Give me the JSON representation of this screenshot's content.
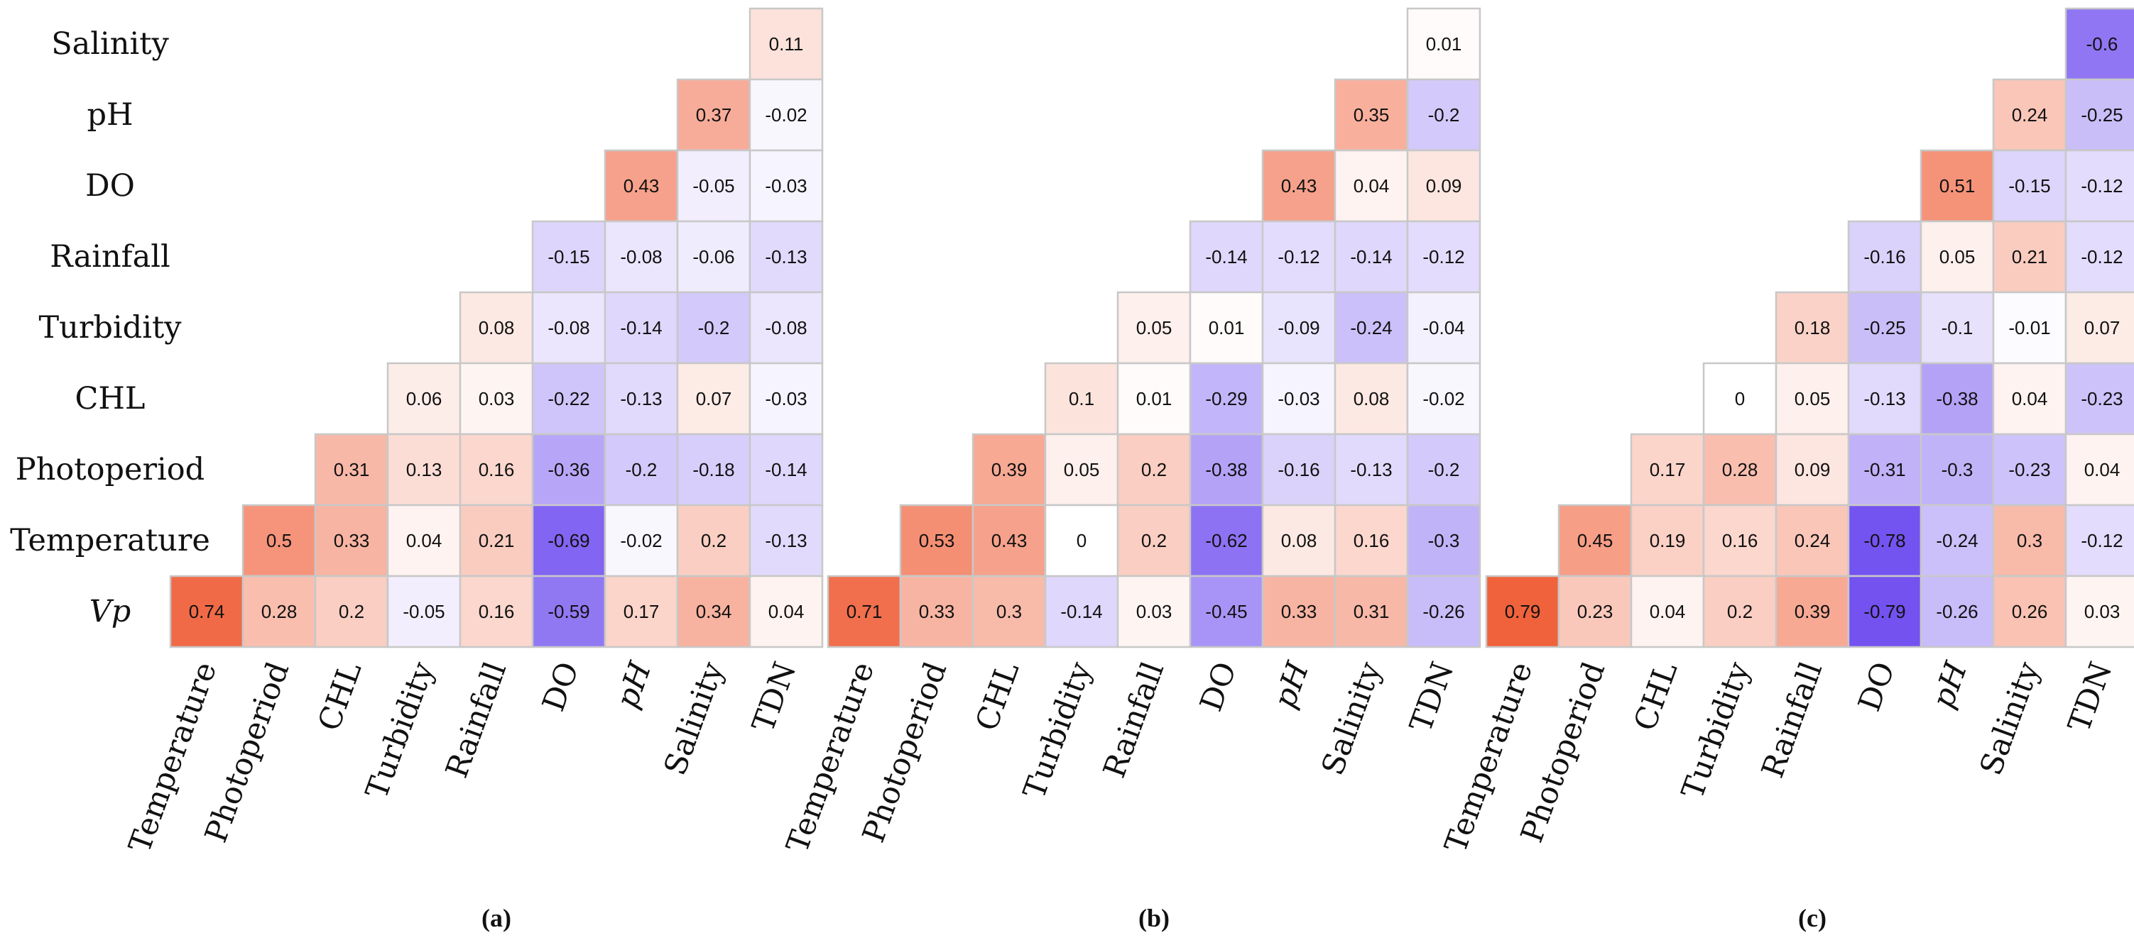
{
  "chart_data": [
    {
      "type": "heatmap",
      "caption": "(a)",
      "row_labels": [
        "Salinity",
        "pH",
        "DO",
        "Rainfall",
        "Turbidity",
        "CHL",
        "Photoperiod",
        "Temperature",
        "Vp"
      ],
      "col_labels": [
        "Temperature",
        "Photoperiod",
        "CHL",
        "Turbidity",
        "Rainfall",
        "DO",
        "pH",
        "Salinity",
        "TDN"
      ],
      "values": [
        [
          null,
          null,
          null,
          null,
          null,
          null,
          null,
          null,
          0.11
        ],
        [
          null,
          null,
          null,
          null,
          null,
          null,
          null,
          0.37,
          -0.02
        ],
        [
          null,
          null,
          null,
          null,
          null,
          null,
          0.43,
          -0.05,
          -0.03
        ],
        [
          null,
          null,
          null,
          null,
          null,
          -0.15,
          -0.08,
          -0.06,
          -0.13
        ],
        [
          null,
          null,
          null,
          null,
          0.08,
          -0.08,
          -0.14,
          -0.2,
          -0.08
        ],
        [
          null,
          null,
          null,
          0.06,
          0.03,
          -0.22,
          -0.13,
          0.07,
          -0.03
        ],
        [
          null,
          null,
          0.31,
          0.13,
          0.16,
          -0.36,
          -0.2,
          -0.18,
          -0.14
        ],
        [
          null,
          0.5,
          0.33,
          0.04,
          0.21,
          -0.69,
          -0.02,
          0.2,
          -0.13
        ],
        [
          0.74,
          0.28,
          0.2,
          -0.05,
          0.16,
          -0.59,
          0.17,
          0.34,
          0.04
        ]
      ],
      "color_scale": {
        "negative": "#7150f0",
        "neutral": "#ffffff",
        "positive": "#f0603a",
        "range": [
          -0.8,
          0.8
        ]
      }
    },
    {
      "type": "heatmap",
      "caption": "(b)",
      "col_labels": [
        "Temperature",
        "Photoperiod",
        "CHL",
        "Turbidity",
        "Rainfall",
        "DO",
        "pH",
        "Salinity",
        "TDN"
      ],
      "values": [
        [
          null,
          null,
          null,
          null,
          null,
          null,
          null,
          null,
          0.01
        ],
        [
          null,
          null,
          null,
          null,
          null,
          null,
          null,
          0.35,
          -0.2
        ],
        [
          null,
          null,
          null,
          null,
          null,
          null,
          0.43,
          0.04,
          0.09
        ],
        [
          null,
          null,
          null,
          null,
          null,
          -0.14,
          -0.12,
          -0.14,
          -0.12
        ],
        [
          null,
          null,
          null,
          null,
          0.05,
          0.01,
          -0.09,
          -0.24,
          -0.04
        ],
        [
          null,
          null,
          null,
          0.1,
          0.01,
          -0.29,
          -0.03,
          0.08,
          -0.02
        ],
        [
          null,
          null,
          0.39,
          0.05,
          0.2,
          -0.38,
          -0.16,
          -0.13,
          -0.2
        ],
        [
          null,
          0.53,
          0.43,
          0,
          0.2,
          -0.62,
          0.08,
          0.16,
          -0.3
        ],
        [
          0.71,
          0.33,
          0.3,
          -0.14,
          0.03,
          -0.45,
          0.33,
          0.31,
          -0.26
        ]
      ],
      "color_scale": {
        "negative": "#7150f0",
        "neutral": "#ffffff",
        "positive": "#f0603a",
        "range": [
          -0.8,
          0.8
        ]
      }
    },
    {
      "type": "heatmap",
      "caption": "(c)",
      "col_labels": [
        "Temperature",
        "Photoperiod",
        "CHL",
        "Turbidity",
        "Rainfall",
        "DO",
        "pH",
        "Salinity",
        "TDN"
      ],
      "values": [
        [
          null,
          null,
          null,
          null,
          null,
          null,
          null,
          null,
          -0.6
        ],
        [
          null,
          null,
          null,
          null,
          null,
          null,
          null,
          0.24,
          -0.25
        ],
        [
          null,
          null,
          null,
          null,
          null,
          null,
          0.51,
          -0.15,
          -0.12
        ],
        [
          null,
          null,
          null,
          null,
          null,
          -0.16,
          0.05,
          0.21,
          -0.12
        ],
        [
          null,
          null,
          null,
          null,
          0.18,
          -0.25,
          -0.1,
          -0.01,
          0.07
        ],
        [
          null,
          null,
          null,
          0,
          0.05,
          -0.13,
          -0.38,
          0.04,
          -0.23
        ],
        [
          null,
          null,
          0.17,
          0.28,
          0.09,
          -0.31,
          -0.3,
          -0.23,
          0.04
        ],
        [
          null,
          0.45,
          0.19,
          0.16,
          0.24,
          -0.78,
          -0.24,
          0.3,
          -0.12
        ],
        [
          0.79,
          0.23,
          0.04,
          0.2,
          0.39,
          -0.79,
          -0.26,
          0.26,
          0.03
        ]
      ],
      "color_scale": {
        "negative": "#7150f0",
        "neutral": "#ffffff",
        "positive": "#f0603a",
        "range": [
          -0.8,
          0.8
        ]
      }
    }
  ]
}
